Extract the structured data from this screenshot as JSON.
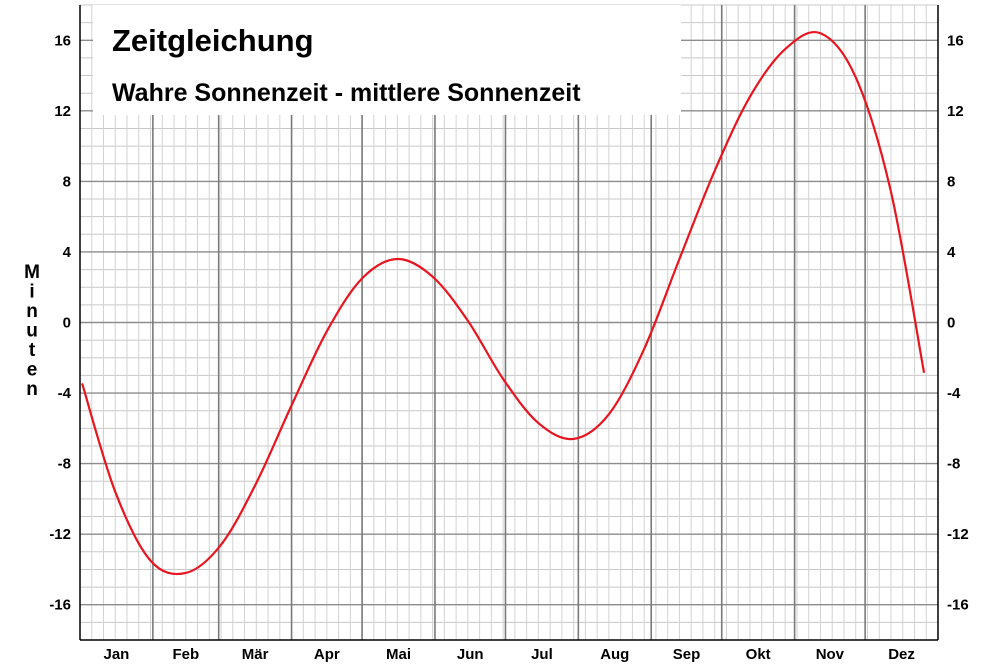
{
  "chart_data": {
    "type": "line",
    "title": "Zeitgleichung",
    "subtitle": "Wahre Sonnenzeit - mittlere Sonnenzeit",
    "ylabel": "Minuten",
    "xlabel": "",
    "ylim": [
      -18,
      18
    ],
    "yticks": [
      -16,
      -12,
      -8,
      -4,
      0,
      4,
      8,
      12,
      16
    ],
    "months": [
      "Jan",
      "Feb",
      "Mär",
      "Apr",
      "Mai",
      "Jun",
      "Jul",
      "Aug",
      "Sep",
      "Okt",
      "Nov",
      "Dez"
    ],
    "grid": true,
    "series": [
      {
        "color": "#e8141e",
        "x": [
          1,
          15,
          30,
          45,
          60,
          75,
          90,
          105,
          120,
          135,
          150,
          165,
          180,
          195,
          210,
          225,
          240,
          255,
          270,
          285,
          300,
          315,
          330,
          345,
          359
        ],
        "y": [
          -3.5,
          -9.6,
          -13.5,
          -14.2,
          -12.6,
          -9.1,
          -4.7,
          -0.5,
          2.5,
          3.6,
          2.6,
          0.1,
          -3.2,
          -5.7,
          -6.6,
          -5.2,
          -1.5,
          3.6,
          8.6,
          12.8,
          15.5,
          16.4,
          13.9,
          7.4,
          -2.8
        ]
      }
    ]
  }
}
